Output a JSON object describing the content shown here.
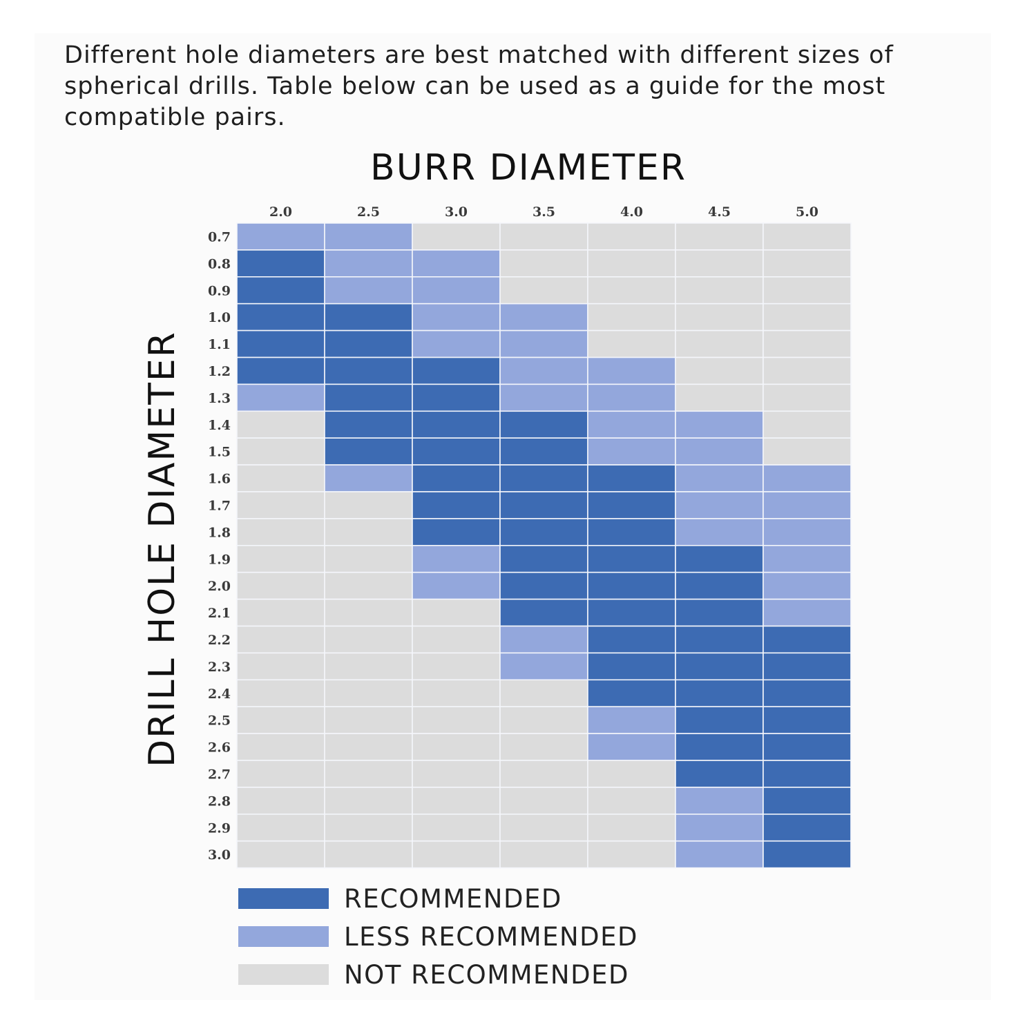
{
  "intro_text": "Different hole diameters are best matched with different sizes of spherical drills. Table below can be used as a guide for the most compatible pairs.",
  "colors": {
    "recommended": "#3d6bb3",
    "less_recommended": "#93a7dc",
    "not_recommended": "#dcdcdc"
  },
  "chart_data": {
    "type": "heatmap",
    "xlabel": "BURR DIAMETER",
    "ylabel": "DRILL HOLE DIAMETER",
    "x": [
      "2.0",
      "2.5",
      "3.0",
      "3.5",
      "4.0",
      "4.5",
      "5.0"
    ],
    "y": [
      "0.7",
      "0.8",
      "0.9",
      "1.0",
      "1.1",
      "1.2",
      "1.3",
      "1.4",
      "1.5",
      "1.6",
      "1.7",
      "1.8",
      "1.9",
      "2.0",
      "2.1",
      "2.2",
      "2.3",
      "2.4",
      "2.5",
      "2.6",
      "2.7",
      "2.8",
      "2.9",
      "3.0"
    ],
    "values_legend": {
      "2": "RECOMMENDED",
      "1": "LESS RECOMMENDED",
      "0": "NOT RECOMMENDED"
    },
    "values": [
      [
        1,
        1,
        0,
        0,
        0,
        0,
        0
      ],
      [
        2,
        1,
        1,
        0,
        0,
        0,
        0
      ],
      [
        2,
        1,
        1,
        0,
        0,
        0,
        0
      ],
      [
        2,
        2,
        1,
        1,
        0,
        0,
        0
      ],
      [
        2,
        2,
        1,
        1,
        0,
        0,
        0
      ],
      [
        2,
        2,
        2,
        1,
        1,
        0,
        0
      ],
      [
        1,
        2,
        2,
        1,
        1,
        0,
        0
      ],
      [
        0,
        2,
        2,
        2,
        1,
        1,
        0
      ],
      [
        0,
        2,
        2,
        2,
        1,
        1,
        0
      ],
      [
        0,
        1,
        2,
        2,
        2,
        1,
        1
      ],
      [
        0,
        0,
        2,
        2,
        2,
        1,
        1
      ],
      [
        0,
        0,
        2,
        2,
        2,
        1,
        1
      ],
      [
        0,
        0,
        1,
        2,
        2,
        2,
        1
      ],
      [
        0,
        0,
        1,
        2,
        2,
        2,
        1
      ],
      [
        0,
        0,
        0,
        2,
        2,
        2,
        1
      ],
      [
        0,
        0,
        0,
        1,
        2,
        2,
        2
      ],
      [
        0,
        0,
        0,
        1,
        2,
        2,
        2
      ],
      [
        0,
        0,
        0,
        0,
        2,
        2,
        2
      ],
      [
        0,
        0,
        0,
        0,
        1,
        2,
        2
      ],
      [
        0,
        0,
        0,
        0,
        1,
        2,
        2
      ],
      [
        0,
        0,
        0,
        0,
        0,
        2,
        2
      ],
      [
        0,
        0,
        0,
        0,
        0,
        1,
        2
      ],
      [
        0,
        0,
        0,
        0,
        0,
        1,
        2
      ],
      [
        0,
        0,
        0,
        0,
        0,
        1,
        2
      ]
    ],
    "legend": [
      {
        "label": "RECOMMENDED",
        "level": 2
      },
      {
        "label": "LESS RECOMMENDED",
        "level": 1
      },
      {
        "label": "NOT RECOMMENDED",
        "level": 0
      }
    ],
    "legend_position": "bottom"
  }
}
